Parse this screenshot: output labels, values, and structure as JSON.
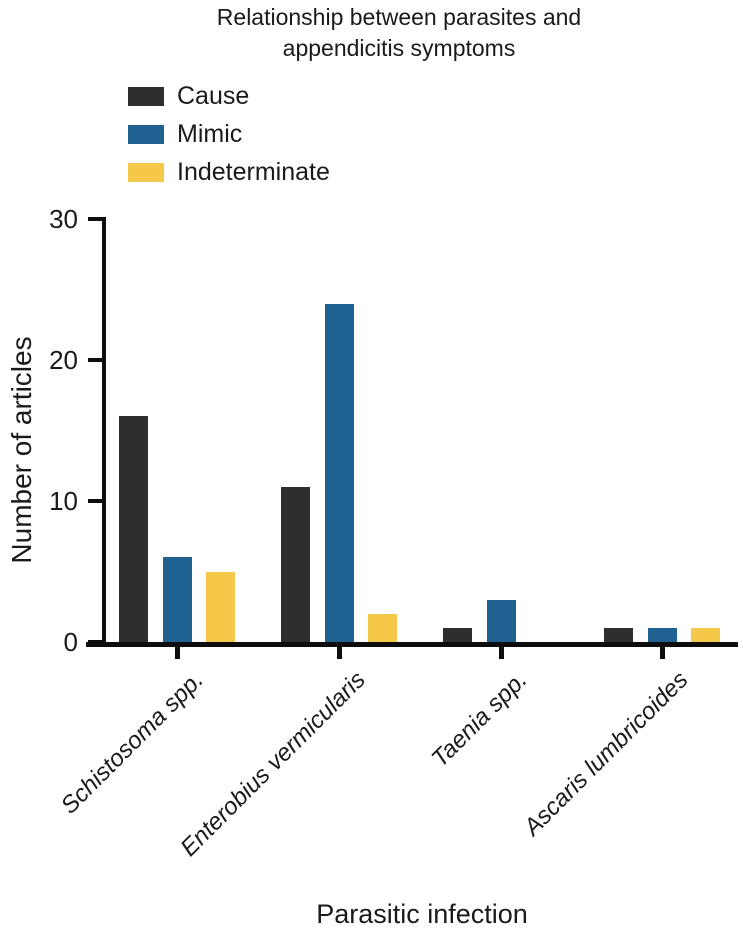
{
  "page": {
    "background": "#ffffff",
    "text_color": "#1a1a1a"
  },
  "chart_data": {
    "type": "bar",
    "title": "Relationship between parasites and appendicitis symptoms",
    "xlabel": "Parasitic infection",
    "ylabel": "Number of articles",
    "categories": [
      "Schistosoma spp.",
      "Enterobius vermicularis",
      "Taenia spp.",
      "Ascaris lumbricoides"
    ],
    "series": [
      {
        "name": "Cause",
        "color": "#2e2e30",
        "values": [
          16,
          11,
          1,
          1
        ]
      },
      {
        "name": "Mimic",
        "color": "#1f6291",
        "values": [
          6,
          24,
          3,
          1
        ]
      },
      {
        "name": "Indeterminate",
        "color": "#f6c84a",
        "values": [
          5,
          2,
          0,
          1
        ]
      }
    ],
    "ylim": [
      0,
      30
    ],
    "yticks": [
      0,
      10,
      20,
      30
    ],
    "grid": false,
    "legend_position": "top-left",
    "axis_color": "#0d0d0d",
    "category_label_style": "italic, rotated 45deg"
  }
}
